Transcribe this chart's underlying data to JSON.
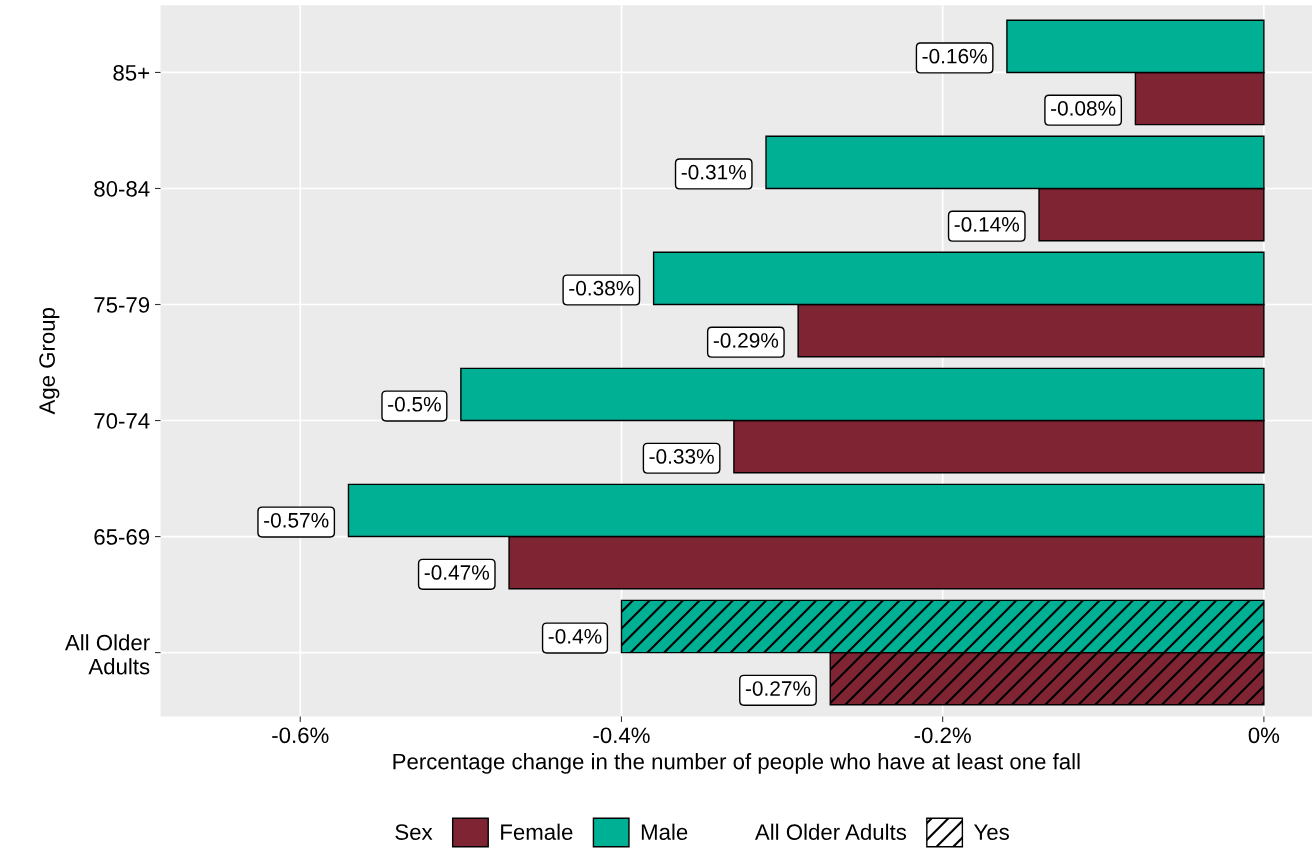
{
  "chart_data": {
    "type": "bar",
    "orientation": "horizontal",
    "xlabel": "Percentage change in the number of people who have at least one fall",
    "ylabel": "Age Group",
    "legend_title": "Sex",
    "categories": [
      "85+",
      "80-84",
      "75-79",
      "70-74",
      "65-69",
      "All Older\nAdults"
    ],
    "series": [
      {
        "name": "Female",
        "color": "#7f2433",
        "values": [
          -0.08,
          -0.14,
          -0.29,
          -0.33,
          -0.47,
          -0.27
        ],
        "value_labels": [
          "-0.08%",
          "-0.14%",
          "-0.29%",
          "-0.33%",
          "-0.47%",
          "-0.27%"
        ]
      },
      {
        "name": "Male",
        "color": "#00b094",
        "values": [
          -0.16,
          -0.31,
          -0.38,
          -0.5,
          -0.57,
          -0.4
        ],
        "value_labels": [
          "-0.16%",
          "-0.31%",
          "-0.38%",
          "-0.5%",
          "-0.57%",
          "-0.4%"
        ]
      }
    ],
    "xlim": [
      -0.687,
      0.03
    ],
    "xticks": [
      {
        "value": -0.6,
        "label": "-0.6%"
      },
      {
        "value": -0.4,
        "label": "-0.4%"
      },
      {
        "value": -0.2,
        "label": "-0.2%"
      },
      {
        "value": 0,
        "label": "0%"
      }
    ],
    "grid": true,
    "legend": "bottom",
    "annotations": [
      "All Older Adults",
      "Yes"
    ]
  }
}
